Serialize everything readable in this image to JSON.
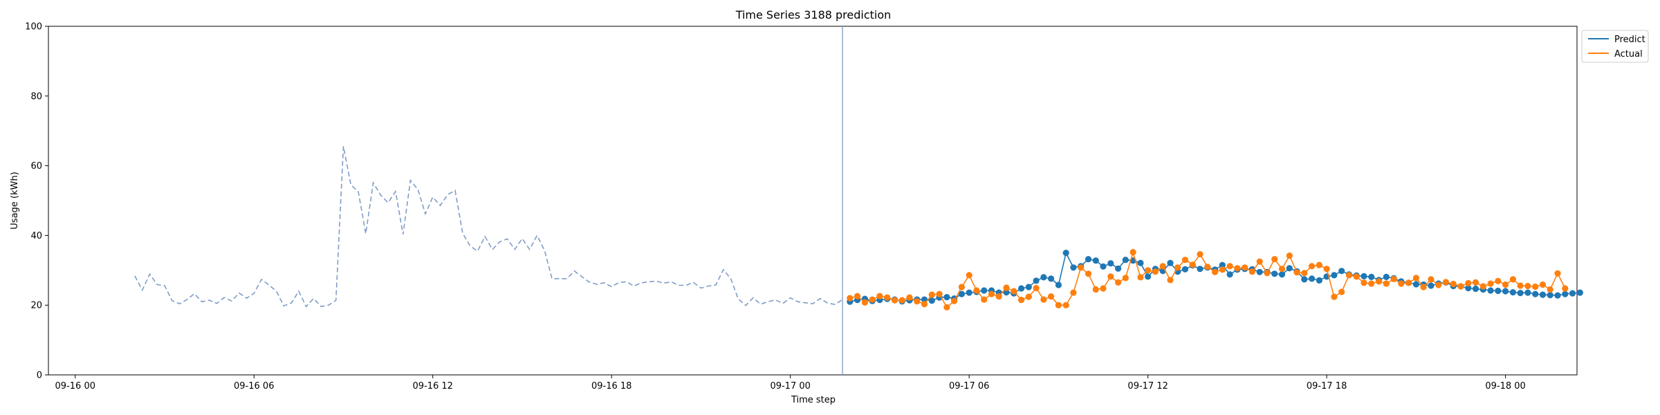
{
  "chart_data": {
    "type": "line",
    "title": "Time Series 3188 prediction",
    "xlabel": "Time step",
    "ylabel": "Usage (kWh)",
    "ylim": [
      0,
      100
    ],
    "yticks": [
      0,
      20,
      40,
      60,
      80,
      100
    ],
    "xlim_hours": [
      -0.9,
      50.4
    ],
    "xticks": [
      {
        "hour": 0,
        "label": "09-16 00"
      },
      {
        "hour": 6,
        "label": "09-16 06"
      },
      {
        "hour": 12,
        "label": "09-16 12"
      },
      {
        "hour": 18,
        "label": "09-16 18"
      },
      {
        "hour": 24,
        "label": "09-17 00"
      },
      {
        "hour": 30,
        "label": "09-17 06"
      },
      {
        "hour": 36,
        "label": "09-17 12"
      },
      {
        "hour": 42,
        "label": "09-17 18"
      },
      {
        "hour": 48,
        "label": "09-18 00"
      }
    ],
    "split_hour": 25.75,
    "history": {
      "start_hour": 2.0,
      "step_hours": 0.25,
      "color": "#7f9cc6",
      "values": [
        28.4,
        24.3,
        28.9,
        25.9,
        25.6,
        21.3,
        20.4,
        21.6,
        23.3,
        21.0,
        21.4,
        20.5,
        22.2,
        21.2,
        23.5,
        22.0,
        23.4,
        27.4,
        25.8,
        24.0,
        19.8,
        20.6,
        24.0,
        19.6,
        21.9,
        19.6,
        20.0,
        21.4,
        65.6,
        54.5,
        52.6,
        40.5,
        55.1,
        51.6,
        49.4,
        52.6,
        40.3,
        55.8,
        53.2,
        46.2,
        51.0,
        48.6,
        51.7,
        52.9,
        40.7,
        37.0,
        35.5,
        39.7,
        36.0,
        38.2,
        39.0,
        36.0,
        39.1,
        36.0,
        40.0,
        35.7,
        27.6,
        27.6,
        27.6,
        29.8,
        28.2,
        26.6,
        26.0,
        26.4,
        25.3,
        26.5,
        26.7,
        25.5,
        26.4,
        26.7,
        26.9,
        26.3,
        26.7,
        25.7,
        25.7,
        26.5,
        24.9,
        25.5,
        25.8,
        30.2,
        27.6,
        21.8,
        19.9,
        22.1,
        20.3,
        21.0,
        21.5,
        20.5,
        22.1,
        21.0,
        20.7,
        20.4,
        21.9,
        20.6,
        20.2,
        21.6
      ]
    },
    "series": [
      {
        "name": "Predict",
        "color": "#1f77b4",
        "start_hour": 26.0,
        "step_hours": 0.25,
        "values": [
          21.0,
          21.5,
          21.8,
          21.2,
          21.5,
          21.8,
          21.6,
          21.1,
          21.4,
          21.6,
          21.6,
          21.3,
          22.2,
          22.3,
          21.9,
          23.2,
          23.6,
          23.8,
          24.2,
          24.2,
          23.6,
          23.7,
          23.4,
          24.8,
          25.2,
          27.0,
          28.0,
          27.6,
          25.8,
          35.0,
          30.8,
          31.2,
          33.2,
          32.8,
          31.1,
          32.0,
          30.5,
          33.0,
          32.8,
          32.1,
          28.2,
          30.4,
          29.8,
          32.1,
          29.6,
          30.3,
          31.4,
          30.4,
          30.8,
          30.2,
          31.5,
          28.8,
          30.2,
          30.4,
          30.3,
          29.5,
          29.5,
          29.0,
          28.8,
          30.6,
          29.7,
          27.4,
          27.6,
          27.1,
          28.2,
          28.6,
          29.8,
          28.8,
          28.5,
          28.3,
          28.1,
          27.2,
          28.1,
          27.7,
          26.8,
          26.4,
          26.0,
          25.9,
          25.6,
          26.2,
          26.5,
          25.5,
          25.4,
          24.9,
          24.7,
          24.5,
          24.2,
          24.1,
          24.0,
          23.7,
          23.5,
          23.6,
          23.2,
          23.0,
          22.9,
          22.8,
          23.2,
          23.4,
          23.6
        ]
      },
      {
        "name": "Actual",
        "color": "#ff7f0e",
        "start_hour": 26.0,
        "step_hours": 0.25,
        "values": [
          22.0,
          22.6,
          20.8,
          21.6,
          22.6,
          22.2,
          21.4,
          21.4,
          22.2,
          21.1,
          20.3,
          23.0,
          23.2,
          19.4,
          21.2,
          25.2,
          28.6,
          24.2,
          21.6,
          23.2,
          22.5,
          25.0,
          24.0,
          21.5,
          22.4,
          24.9,
          21.6,
          22.5,
          20.0,
          20.0,
          23.6,
          30.8,
          29.0,
          24.5,
          24.8,
          28.2,
          26.5,
          27.8,
          35.2,
          28.0,
          30.0,
          29.6,
          31.2,
          27.2,
          30.8,
          33.0,
          31.6,
          34.6,
          31.0,
          29.5,
          30.2,
          31.2,
          30.6,
          30.8,
          29.6,
          32.5,
          29.2,
          33.2,
          30.4,
          34.2,
          29.4,
          29.2,
          31.2,
          31.5,
          30.4,
          22.4,
          23.8,
          28.6,
          28.2,
          26.4,
          26.2,
          26.8,
          26.2,
          27.5,
          26.2,
          26.4,
          27.8,
          25.2,
          27.4,
          25.8,
          26.6,
          26.1,
          25.4,
          26.3,
          26.5,
          25.4,
          26.2,
          26.9,
          25.9,
          27.4,
          25.6,
          25.5,
          25.3,
          25.9,
          24.5,
          29.1,
          24.8
        ]
      }
    ],
    "legend": {
      "position": "outside-top-right"
    }
  }
}
